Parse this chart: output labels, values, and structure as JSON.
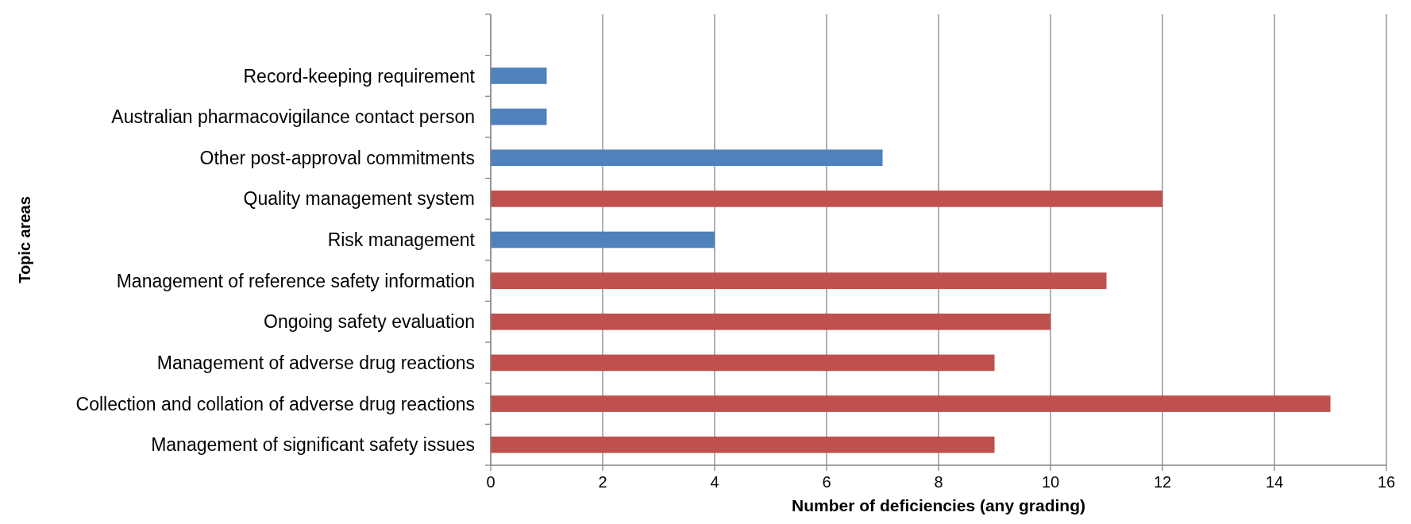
{
  "chart_data": {
    "type": "bar",
    "orientation": "horizontal",
    "xlabel": "Number of deficiencies (any grading)",
    "ylabel": "Topic areas",
    "categories": [
      null,
      "Record-keeping requirement",
      "Australian pharmacovigilance contact person",
      "Other post-approval commitments",
      "Quality management system",
      "Risk management",
      "Management of reference safety information",
      "Ongoing safety evaluation",
      "Management of adverse drug reactions",
      "Collection and collation of adverse drug reactions",
      "Management of significant safety issues"
    ],
    "values": [
      null,
      1,
      1,
      7,
      12,
      4,
      11,
      10,
      9,
      15,
      9
    ],
    "colors": [
      null,
      "#4f81bd",
      "#4f81bd",
      "#4f81bd",
      "#c0504d",
      "#4f81bd",
      "#c0504d",
      "#c0504d",
      "#c0504d",
      "#c0504d",
      "#c0504d"
    ],
    "xlim": [
      0,
      16
    ],
    "xticks": [
      0,
      2,
      4,
      6,
      8,
      10,
      12,
      14,
      16
    ],
    "grid": "x"
  }
}
